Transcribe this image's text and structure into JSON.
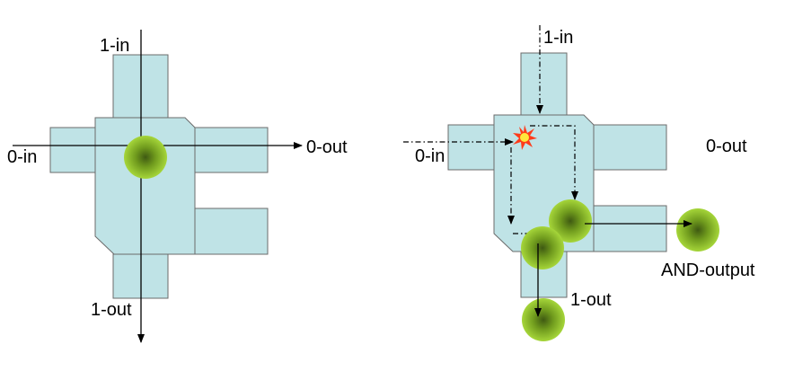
{
  "left_gate": {
    "labels": {
      "in_1": "1-in",
      "in_0": "0-in",
      "out_0": "0-out",
      "out_1": "1-out"
    }
  },
  "right_gate": {
    "labels": {
      "in_1": "1-in",
      "in_0": "0-in",
      "out_0": "0-out",
      "out_1": "1-out",
      "and_output": "AND-output"
    }
  },
  "colors": {
    "block_fill": "#bfe3e6",
    "block_stroke": "#6b6b6b",
    "ball_outer": "#9acd32",
    "ball_inner": "#3f5a12",
    "collision_outer": "#ff3b1a",
    "collision_inner": "#ffe63b"
  }
}
